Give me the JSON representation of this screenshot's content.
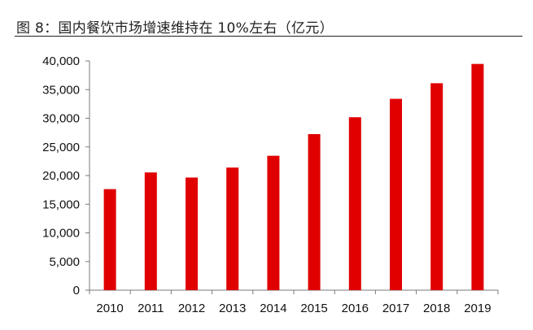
{
  "figure": {
    "title": "图 8：国内餐饮市场增速维持在 10%左右（亿元）"
  },
  "colors": {
    "bar": "#e00000",
    "axis": "#7a7a7a",
    "title_rule": "#222222"
  },
  "chart_data": {
    "type": "bar",
    "title": "",
    "xlabel": "",
    "ylabel": "",
    "categories": [
      "2010",
      "2011",
      "2012",
      "2013",
      "2014",
      "2015",
      "2016",
      "2017",
      "2018",
      "2019"
    ],
    "values": [
      17636,
      20543,
      19656,
      21395,
      23453,
      27233,
      30178,
      33388,
      36114,
      39481
    ],
    "ylim": [
      0,
      40000
    ],
    "yticks": [
      0,
      5000,
      10000,
      15000,
      20000,
      25000,
      30000,
      35000,
      40000
    ],
    "ytick_labels": [
      "0",
      "5,000",
      "10,000",
      "15,000",
      "20,000",
      "25,000",
      "30,000",
      "35,000",
      "40,000"
    ],
    "grid": false,
    "legend": "none"
  }
}
